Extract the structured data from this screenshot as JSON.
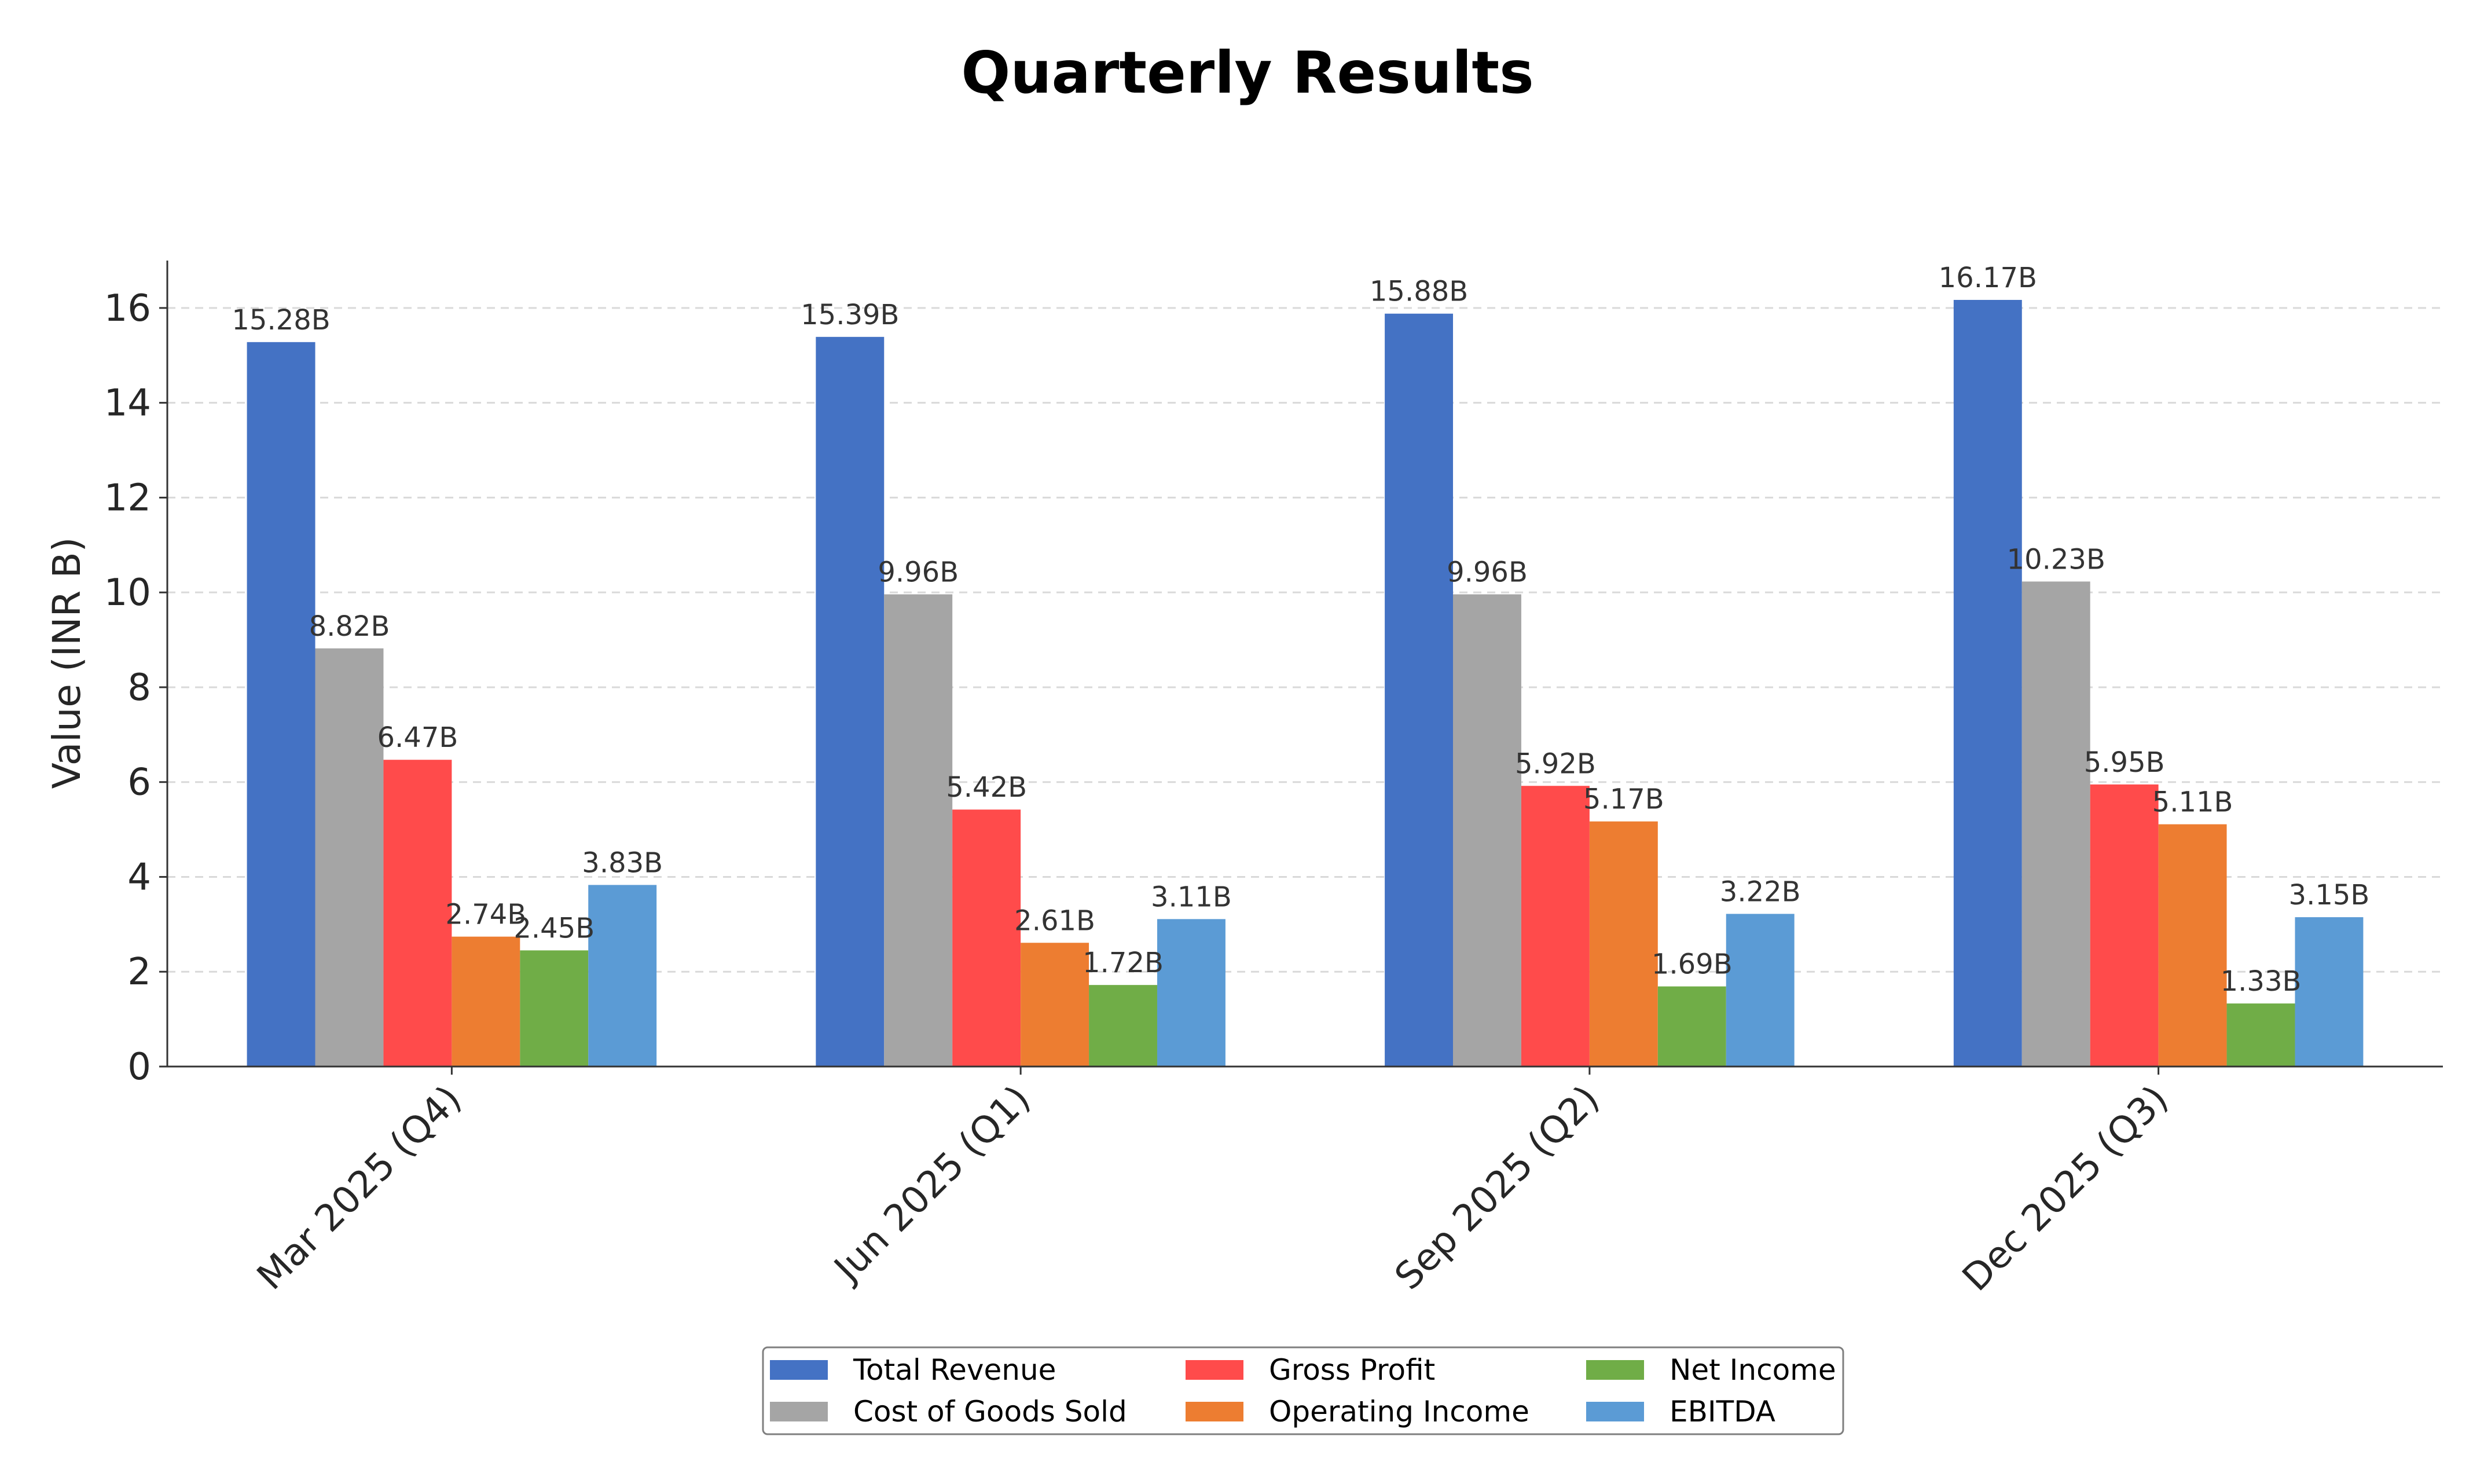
{
  "chart_data": {
    "type": "bar",
    "title": "Quarterly Results",
    "xlabel": "",
    "ylabel": "Value (INR B)",
    "ylim": [
      0,
      17
    ],
    "yticks": [
      0,
      2,
      4,
      6,
      8,
      10,
      12,
      14,
      16
    ],
    "grid": "y, dashed",
    "legend_position": "bottom-center",
    "categories": [
      "Mar 2025 (Q4)",
      "Jun 2025 (Q1)",
      "Sep 2025 (Q2)",
      "Dec 2025 (Q3)"
    ],
    "series": [
      {
        "name": "Total Revenue",
        "color": "#4472C4",
        "values": [
          15.28,
          15.39,
          15.88,
          16.17
        ],
        "labels": [
          "15.28B",
          "15.39B",
          "15.88B",
          "16.17B"
        ]
      },
      {
        "name": "Cost of Goods Sold",
        "color": "#A5A5A5",
        "values": [
          8.82,
          9.96,
          9.96,
          10.23
        ],
        "labels": [
          "8.82B",
          "9.96B",
          "9.96B",
          "10.23B"
        ]
      },
      {
        "name": "Gross Profit",
        "color": "#FF4B4B",
        "values": [
          6.47,
          5.42,
          5.92,
          5.95
        ],
        "labels": [
          "6.47B",
          "5.42B",
          "5.92B",
          "5.95B"
        ]
      },
      {
        "name": "Operating Income",
        "color": "#ED7D31",
        "values": [
          2.74,
          2.61,
          5.17,
          5.11
        ],
        "labels": [
          "2.74B",
          "2.61B",
          "5.17B",
          "5.11B"
        ]
      },
      {
        "name": "Net Income",
        "color": "#70AD47",
        "values": [
          2.45,
          1.72,
          1.69,
          1.33
        ],
        "labels": [
          "2.45B",
          "1.72B",
          "1.69B",
          "1.33B"
        ]
      },
      {
        "name": "EBITDA",
        "color": "#5B9BD5",
        "values": [
          3.83,
          3.11,
          3.22,
          3.15
        ],
        "labels": [
          "3.83B",
          "3.11B",
          "3.22B",
          "3.15B"
        ]
      }
    ]
  }
}
